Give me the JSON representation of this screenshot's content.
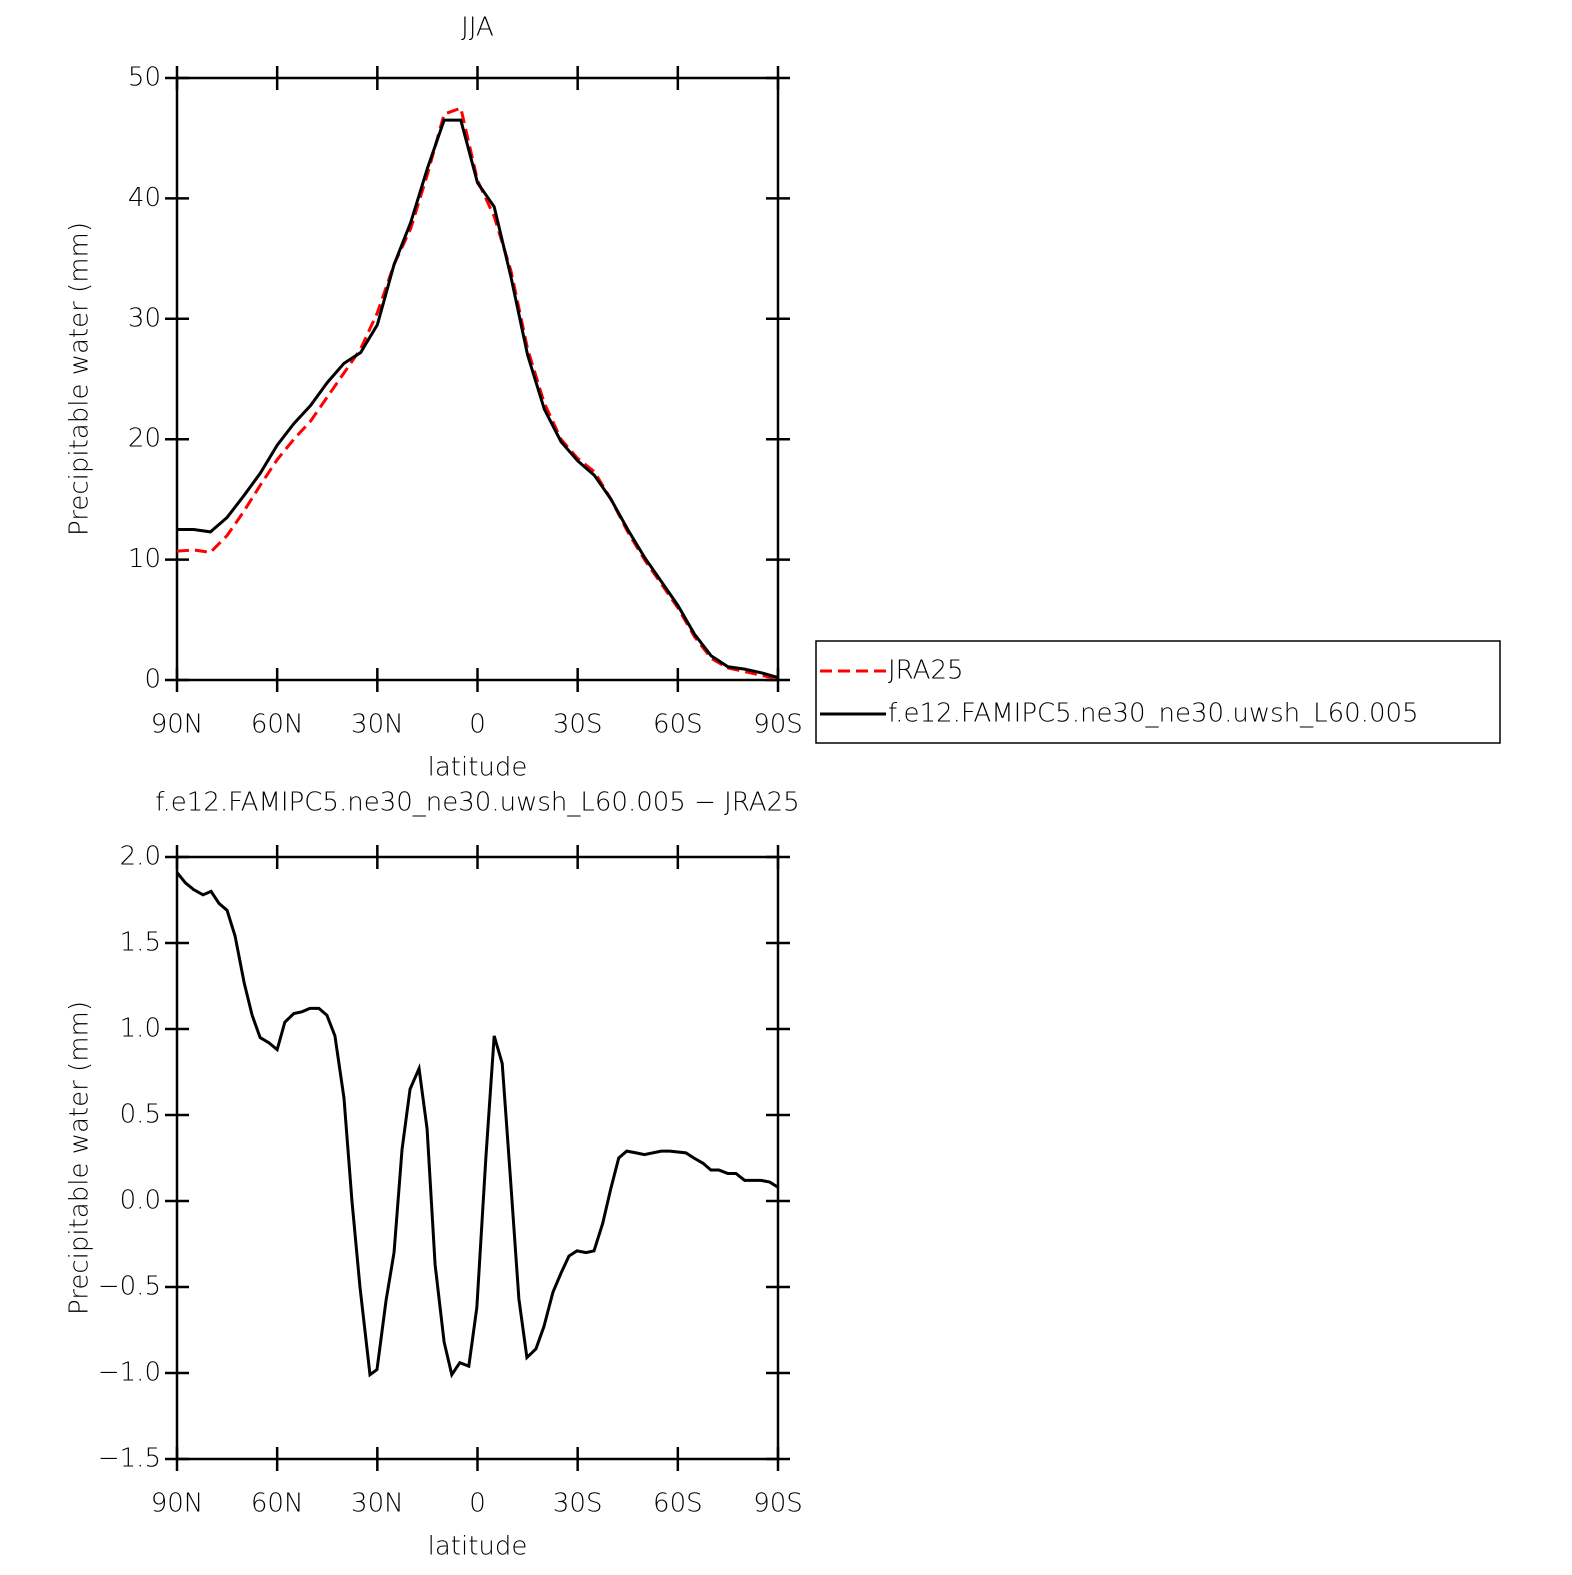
{
  "chart_data": [
    {
      "type": "line",
      "title": "JJA",
      "x_label": "latitude",
      "y_label": "Precipitable water (mm)",
      "x": [
        90,
        85,
        80,
        75,
        70,
        65,
        60,
        55,
        50,
        45,
        40,
        35,
        30,
        25,
        20,
        15,
        10,
        5,
        0,
        -5,
        -10,
        -15,
        -20,
        -25,
        -30,
        -35,
        -40,
        -45,
        -50,
        -55,
        -60,
        -65,
        -70,
        -75,
        -80,
        -85,
        -90
      ],
      "series": [
        {
          "name": "JRA25",
          "color": "#ff0000",
          "style": "dashed",
          "values": [
            10.7,
            10.8,
            10.6,
            12,
            14,
            16.2,
            18.3,
            20,
            21.5,
            23.5,
            25.5,
            27.5,
            30.5,
            34.5,
            37.5,
            42,
            47,
            47.5,
            41.5,
            38.5,
            34,
            27.5,
            23,
            20,
            18.4,
            17.3,
            15,
            12.3,
            10,
            8,
            6,
            3.6,
            1.8,
            1,
            0.7,
            0.4,
            0.1
          ]
        },
        {
          "name": "f.e12.FAMIPC5.ne30_ne30.uwsh_L60.005",
          "color": "#000000",
          "style": "solid",
          "values": [
            12.5,
            12.5,
            12.3,
            13.5,
            15.3,
            17.2,
            19.5,
            21.3,
            22.8,
            24.7,
            26.3,
            27.2,
            29.5,
            34.5,
            38,
            42.5,
            46.5,
            46.5,
            41.3,
            39.3,
            33.5,
            27,
            22.5,
            19.8,
            18.2,
            17,
            15,
            12.5,
            10.2,
            8.2,
            6.2,
            3.8,
            2,
            1.1,
            0.9,
            0.6,
            0.2
          ]
        }
      ],
      "xlim": [
        90,
        -90
      ],
      "xticks": [
        {
          "value": 90,
          "label": "90N"
        },
        {
          "value": 60,
          "label": "60N"
        },
        {
          "value": 30,
          "label": "30N"
        },
        0,
        {
          "value": -30,
          "label": "30S"
        },
        {
          "value": -60,
          "label": "60S"
        },
        {
          "value": -90,
          "label": "90S"
        }
      ],
      "ylim": [
        0,
        50
      ],
      "yticks": [
        0,
        10,
        20,
        30,
        40,
        50
      ],
      "legend": "right"
    },
    {
      "type": "line",
      "title": "f.e12.FAMIPC5.ne30_ne30.uwsh_L60.005 − JRA25",
      "x_label": "latitude",
      "y_label": "Precipitable water (mm)",
      "x": [
        90,
        87.5,
        85,
        82.2,
        79.8,
        77.4,
        75,
        72.6,
        69.9,
        67.5,
        65.1,
        62.5,
        60,
        57.7,
        55,
        52.6,
        50.2,
        47.5,
        45.1,
        42.7,
        40,
        37.6,
        35.2,
        32.2,
        30.1,
        27.4,
        25,
        22.6,
        20.2,
        17.5,
        15.1,
        12.7,
        10,
        7.7,
        5.3,
        2.6,
        0.2,
        -2.5,
        -5,
        -7.4,
        -9.8,
        -12.4,
        -14.8,
        -17.5,
        -19.9,
        -22.6,
        -25,
        -27.4,
        -29.8,
        -32.5,
        -34.9,
        -37.5,
        -39.9,
        -42.3,
        -44.7,
        -47.5,
        -50,
        -55,
        -57.6,
        -62.4,
        -64.8,
        -67.5,
        -69.9,
        -72.3,
        -75,
        -77.4,
        -80,
        -84.9,
        -87.5,
        -90
      ],
      "series": [
        {
          "color": "#000000",
          "style": "solid",
          "values": [
            1.91,
            1.85,
            1.81,
            1.78,
            1.8,
            1.73,
            1.69,
            1.54,
            1.27,
            1.08,
            0.95,
            0.92,
            0.88,
            1.04,
            1.09,
            1.1,
            1.12,
            1.12,
            1.08,
            0.96,
            0.6,
            0.0,
            -0.5,
            -1.01,
            -0.98,
            -0.58,
            -0.3,
            0.3,
            0.65,
            0.77,
            0.42,
            -0.37,
            -0.82,
            -1.01,
            -0.94,
            -0.96,
            -0.62,
            0.25,
            0.96,
            0.8,
            0.15,
            -0.57,
            -0.91,
            -0.86,
            -0.73,
            -0.53,
            -0.42,
            -0.32,
            -0.29,
            -0.3,
            -0.29,
            -0.13,
            0.07,
            0.25,
            0.29,
            0.28,
            0.27,
            0.29,
            0.29,
            0.28,
            0.25,
            0.22,
            0.18,
            0.18,
            0.16,
            0.16,
            0.12,
            0.12,
            0.11,
            0.08
          ]
        }
      ],
      "xlim": [
        90,
        -90
      ],
      "xticks": [
        {
          "value": 90,
          "label": "90N"
        },
        {
          "value": 60,
          "label": "60N"
        },
        {
          "value": 30,
          "label": "30N"
        },
        0,
        {
          "value": -30,
          "label": "30S"
        },
        {
          "value": -60,
          "label": "60S"
        },
        {
          "value": -90,
          "label": "90S"
        }
      ],
      "ylim": [
        -1.5,
        2
      ],
      "yticks": [
        {
          "value": -1.5,
          "label": "−1.5"
        },
        {
          "value": -1,
          "label": "−1.0"
        },
        {
          "value": -0.5,
          "label": "−0.5"
        },
        {
          "value": 0,
          "label": "0.0"
        },
        0.5,
        {
          "value": 1,
          "label": "1.0"
        },
        1.5,
        {
          "value": 2,
          "label": "2.0"
        }
      ]
    }
  ]
}
